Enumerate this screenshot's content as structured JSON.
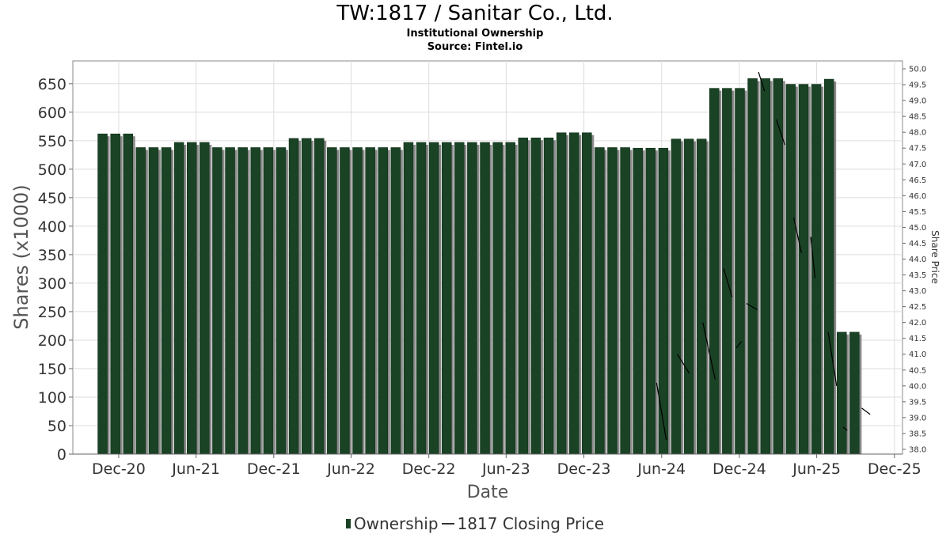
{
  "header": {
    "title": "TW:1817 / Sanitar Co., Ltd.",
    "subtitle": "Institutional Ownership",
    "source": "Source: Fintel.io"
  },
  "legend": {
    "ownership": "Ownership",
    "price": "1817 Closing Price"
  },
  "colors": {
    "bar": "#1a4225",
    "bar_shadow": "#8a8a8a",
    "price_line": "#000000",
    "grid": "#dddddd"
  },
  "chart_data": {
    "type": "bar",
    "xlabel": "Date",
    "ylabel": "Shares (x1000)",
    "y2label": "Share Price",
    "ylim": [
      0,
      690
    ],
    "y2lim": [
      37.85,
      50.25
    ],
    "xlim": [
      "2020-08-15",
      "2025-12-20"
    ],
    "yticks": [
      0,
      50,
      100,
      150,
      200,
      250,
      300,
      350,
      400,
      450,
      500,
      550,
      600,
      650
    ],
    "y2ticks": [
      "38.0",
      "38.5",
      "39.0",
      "39.5",
      "40.0",
      "40.5",
      "41.0",
      "41.5",
      "42.0",
      "42.5",
      "43.0",
      "43.5",
      "44.0",
      "44.5",
      "45.0",
      "45.5",
      "46.0",
      "46.5",
      "47.0",
      "47.5",
      "48.0",
      "48.5",
      "49.0",
      "49.5",
      "50.0"
    ],
    "xticks": [
      {
        "label": "Dec-20",
        "date": "2020-12-01"
      },
      {
        "label": "Jun-21",
        "date": "2021-06-01"
      },
      {
        "label": "Dec-21",
        "date": "2021-12-01"
      },
      {
        "label": "Jun-22",
        "date": "2022-06-01"
      },
      {
        "label": "Dec-22",
        "date": "2022-12-01"
      },
      {
        "label": "Jun-23",
        "date": "2023-06-01"
      },
      {
        "label": "Dec-23",
        "date": "2023-12-01"
      },
      {
        "label": "Jun-24",
        "date": "2024-06-01"
      },
      {
        "label": "Dec-24",
        "date": "2024-12-01"
      },
      {
        "label": "Jun-25",
        "date": "2025-06-01"
      },
      {
        "label": "Dec-25",
        "date": "2025-12-01"
      }
    ],
    "grid": true,
    "legend_position": "bottom-center",
    "series": [
      {
        "name": "Ownership",
        "type": "bar",
        "x": [
          "2020-10-24",
          "2020-11-23",
          "2020-12-23",
          "2021-01-22",
          "2021-02-21",
          "2021-03-23",
          "2021-04-22",
          "2021-05-22",
          "2021-06-21",
          "2021-07-21",
          "2021-08-20",
          "2021-09-19",
          "2021-10-19",
          "2021-11-18",
          "2021-12-18",
          "2022-01-17",
          "2022-02-16",
          "2022-03-18",
          "2022-04-17",
          "2022-05-17",
          "2022-06-16",
          "2022-07-16",
          "2022-08-15",
          "2022-09-14",
          "2022-10-14",
          "2022-11-13",
          "2022-12-13",
          "2023-01-12",
          "2023-02-11",
          "2023-03-13",
          "2023-04-12",
          "2023-05-12",
          "2023-06-11",
          "2023-07-11",
          "2023-08-10",
          "2023-09-09",
          "2023-10-09",
          "2023-11-08",
          "2023-12-08",
          "2024-01-07",
          "2024-02-06",
          "2024-03-07",
          "2024-04-06",
          "2024-05-06",
          "2024-06-05",
          "2024-07-05",
          "2024-08-04",
          "2024-09-03",
          "2024-10-03",
          "2024-11-02",
          "2024-12-02",
          "2025-01-01",
          "2025-01-31",
          "2025-03-02",
          "2025-04-01",
          "2025-05-01",
          "2025-05-31",
          "2025-06-30",
          "2025-07-30",
          "2025-08-29"
        ],
        "values": [
          562,
          562,
          562,
          538,
          538,
          538,
          547,
          547,
          547,
          538,
          538,
          538,
          538,
          538,
          538,
          554,
          554,
          554,
          538,
          538,
          538,
          538,
          538,
          538,
          547,
          547,
          547,
          547,
          547,
          547,
          547,
          547,
          547,
          555,
          555,
          555,
          564,
          564,
          564,
          538,
          538,
          538,
          537,
          537,
          537,
          553,
          553,
          553,
          642,
          642,
          642,
          659,
          659,
          659,
          649,
          649,
          649,
          658,
          214,
          214
        ]
      },
      {
        "name": "1817 Closing Price",
        "type": "line",
        "axis": "right",
        "segments": [
          [
            [
              "2024-05-20",
              40.1
            ],
            [
              "2024-06-12",
              38.3
            ]
          ],
          [
            [
              "2024-07-08",
              41.0
            ],
            [
              "2024-08-05",
              40.4
            ]
          ],
          [
            [
              "2024-09-06",
              42.0
            ],
            [
              "2024-10-05",
              40.2
            ]
          ],
          [
            [
              "2024-10-25",
              43.7
            ],
            [
              "2024-11-14",
              42.8
            ]
          ],
          [
            [
              "2024-11-24",
              41.2
            ],
            [
              "2024-12-06",
              41.4
            ]
          ],
          [
            [
              "2024-12-18",
              42.6
            ],
            [
              "2025-01-12",
              42.4
            ]
          ],
          [
            [
              "2025-01-15",
              49.9
            ],
            [
              "2025-01-29",
              49.3
            ]
          ],
          [
            [
              "2025-02-26",
              48.4
            ],
            [
              "2025-03-18",
              47.6
            ]
          ],
          [
            [
              "2025-04-08",
              45.3
            ],
            [
              "2025-04-26",
              44.2
            ]
          ],
          [
            [
              "2025-05-18",
              44.7
            ],
            [
              "2025-05-28",
              43.4
            ]
          ],
          [
            [
              "2025-06-28",
              41.7
            ],
            [
              "2025-07-18",
              40.0
            ]
          ],
          [
            [
              "2025-08-02",
              38.7
            ],
            [
              "2025-08-12",
              38.6
            ]
          ],
          [
            [
              "2025-09-15",
              39.3
            ],
            [
              "2025-10-05",
              39.1
            ]
          ]
        ]
      }
    ]
  }
}
